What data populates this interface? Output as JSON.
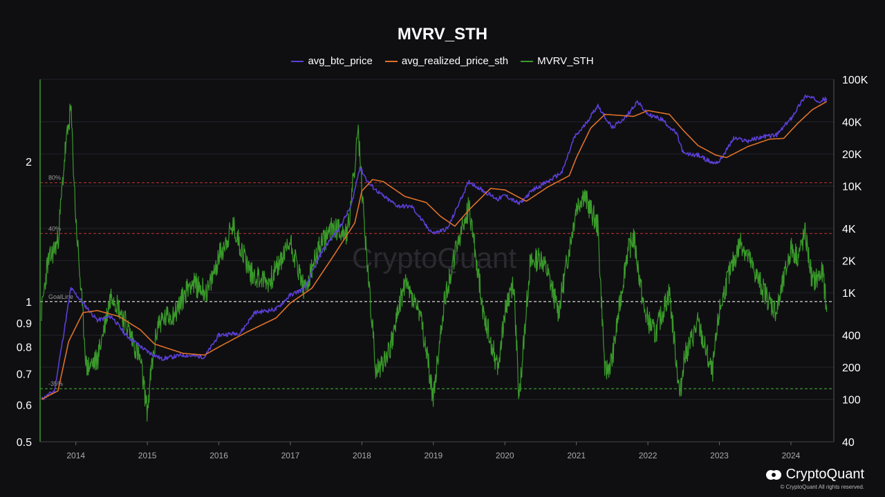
{
  "colors": {
    "background": "#0f0f12",
    "avg_btc_price": "#5b3fd6",
    "avg_realized_price_sth": "#e0712a",
    "mvrv_sth": "#3a9a2a",
    "level_red": "#b0302a",
    "level_green": "#3a9a2a",
    "goal_line": "#d8d8d8"
  },
  "brand": {
    "name": "CryptoQuant",
    "copyright": "© CryptoQuant All rights reserved.",
    "watermark": "CryptoQuant"
  },
  "chart_data": {
    "type": "line",
    "title": "MVRV_STH",
    "legend": [
      "avg_btc_price",
      "avg_realized_price_sth",
      "MVRV_STH"
    ],
    "legend_position": "top-center",
    "grid": true,
    "x_ticks": [
      "2014",
      "2015",
      "2016",
      "2017",
      "2018",
      "2019",
      "2020",
      "2021",
      "2022",
      "2023",
      "2024"
    ],
    "x_range": [
      2013.5,
      2024.6
    ],
    "left_axis": {
      "scale": "log",
      "range": [
        0.5,
        3.0
      ],
      "ticks": [
        0.5,
        0.6,
        0.7,
        0.8,
        0.9,
        1,
        2
      ],
      "tick_labels": [
        "0.5",
        "0.6",
        "0.7",
        "0.8",
        "0.9",
        "1",
        "2"
      ]
    },
    "right_axis": {
      "scale": "log",
      "range": [
        40,
        100000
      ],
      "ticks": [
        40,
        100,
        200,
        400,
        1000,
        2000,
        4000,
        10000,
        20000,
        40000,
        100000
      ],
      "tick_labels": [
        "40",
        "100",
        "200",
        "400",
        "1K",
        "2K",
        "4K",
        "10K",
        "20K",
        "40K",
        "100K"
      ]
    },
    "reference_lines": [
      {
        "label": "80%",
        "value": 1.8,
        "color": "#b0302a"
      },
      {
        "label": "40%",
        "value": 1.4,
        "color": "#b0302a"
      },
      {
        "label": "GoalLine",
        "value": 1.0,
        "color": "#d8d8d8"
      },
      {
        "label": "-35%",
        "value": 0.65,
        "color": "#3a9a2a"
      }
    ],
    "series": [
      {
        "name": "avg_btc_price",
        "axis": "right",
        "x": [
          2013.52,
          2013.7,
          2013.85,
          2013.93,
          2014.1,
          2014.3,
          2014.5,
          2014.7,
          2015.0,
          2015.2,
          2015.5,
          2015.8,
          2016.0,
          2016.3,
          2016.5,
          2016.8,
          2017.0,
          2017.2,
          2017.45,
          2017.7,
          2017.85,
          2017.97,
          2018.1,
          2018.3,
          2018.5,
          2018.7,
          2018.9,
          2019.0,
          2019.2,
          2019.4,
          2019.5,
          2019.7,
          2019.9,
          2020.0,
          2020.2,
          2020.4,
          2020.6,
          2020.8,
          2020.97,
          2021.1,
          2021.3,
          2021.5,
          2021.7,
          2021.85,
          2022.0,
          2022.2,
          2022.4,
          2022.5,
          2022.7,
          2022.9,
          2023.0,
          2023.2,
          2023.4,
          2023.6,
          2023.8,
          2024.0,
          2024.2,
          2024.4,
          2024.5
        ],
        "values": [
          100,
          120,
          500,
          1100,
          800,
          550,
          600,
          400,
          280,
          240,
          260,
          250,
          400,
          420,
          650,
          700,
          950,
          1100,
          2500,
          4200,
          6500,
          15000,
          10500,
          8000,
          6500,
          6400,
          4200,
          3600,
          4000,
          8000,
          11000,
          9000,
          7500,
          8200,
          6800,
          9300,
          11000,
          13500,
          28500,
          36000,
          57000,
          35000,
          45000,
          62000,
          47000,
          42000,
          31000,
          20000,
          19500,
          16500,
          17000,
          28000,
          26500,
          29000,
          30000,
          43000,
          70000,
          63000,
          66000
        ]
      },
      {
        "name": "avg_realized_price_sth",
        "axis": "right",
        "x": [
          2013.52,
          2013.75,
          2013.9,
          2014.1,
          2014.3,
          2014.6,
          2014.9,
          2015.1,
          2015.5,
          2015.8,
          2016.0,
          2016.4,
          2016.8,
          2017.0,
          2017.3,
          2017.6,
          2017.9,
          2018.0,
          2018.15,
          2018.3,
          2018.6,
          2018.9,
          2019.1,
          2019.3,
          2019.5,
          2019.8,
          2020.0,
          2020.3,
          2020.6,
          2020.9,
          2021.0,
          2021.2,
          2021.4,
          2021.6,
          2021.8,
          2022.0,
          2022.3,
          2022.5,
          2022.7,
          2022.95,
          2023.1,
          2023.4,
          2023.7,
          2023.9,
          2024.1,
          2024.3,
          2024.5
        ],
        "values": [
          100,
          120,
          350,
          650,
          680,
          600,
          450,
          330,
          270,
          260,
          310,
          430,
          580,
          800,
          1100,
          2200,
          4500,
          9000,
          11500,
          11000,
          8000,
          7000,
          5200,
          4200,
          6000,
          9500,
          9200,
          7200,
          9800,
          12500,
          18500,
          35000,
          47000,
          46000,
          45000,
          51000,
          47000,
          33000,
          24000,
          19500,
          18500,
          23500,
          27500,
          28000,
          39000,
          52000,
          62000
        ]
      },
      {
        "name": "MVRV_STH",
        "axis": "left",
        "x": [
          2013.52,
          2013.6,
          2013.75,
          2013.85,
          2013.93,
          2014.0,
          2014.15,
          2014.3,
          2014.5,
          2014.7,
          2014.9,
          2015.0,
          2015.05,
          2015.15,
          2015.4,
          2015.6,
          2015.85,
          2016.0,
          2016.2,
          2016.45,
          2016.7,
          2016.9,
          2017.0,
          2017.2,
          2017.4,
          2017.6,
          2017.8,
          2017.95,
          2018.05,
          2018.2,
          2018.4,
          2018.6,
          2018.8,
          2018.92,
          2019.0,
          2019.15,
          2019.35,
          2019.5,
          2019.7,
          2019.9,
          2020.0,
          2020.12,
          2020.2,
          2020.35,
          2020.5,
          2020.6,
          2020.75,
          2020.9,
          2021.0,
          2021.1,
          2021.3,
          2021.4,
          2021.5,
          2021.7,
          2021.8,
          2021.95,
          2022.1,
          2022.3,
          2022.45,
          2022.5,
          2022.7,
          2022.9,
          2023.0,
          2023.1,
          2023.3,
          2023.5,
          2023.7,
          2023.8,
          2024.0,
          2024.1,
          2024.2,
          2024.3,
          2024.45,
          2024.5
        ],
        "values": [
          0.95,
          1.2,
          1.35,
          2.1,
          2.6,
          1.5,
          0.72,
          0.75,
          1.05,
          0.9,
          0.75,
          0.58,
          0.7,
          0.9,
          0.95,
          1.1,
          1.05,
          1.25,
          1.45,
          1.15,
          1.1,
          1.25,
          1.35,
          1.05,
          1.3,
          1.45,
          1.4,
          2.3,
          1.35,
          0.7,
          0.8,
          1.1,
          0.95,
          0.75,
          0.62,
          1.0,
          1.35,
          1.6,
          0.95,
          0.72,
          0.95,
          1.1,
          0.62,
          1.2,
          1.25,
          1.15,
          0.95,
          1.3,
          1.6,
          1.7,
          1.45,
          0.7,
          0.75,
          1.25,
          1.38,
          0.95,
          0.85,
          1.05,
          0.62,
          0.75,
          0.9,
          0.7,
          0.95,
          1.1,
          1.35,
          1.15,
          1.0,
          0.95,
          1.3,
          1.25,
          1.4,
          1.1,
          1.15,
          0.95
        ]
      }
    ]
  }
}
